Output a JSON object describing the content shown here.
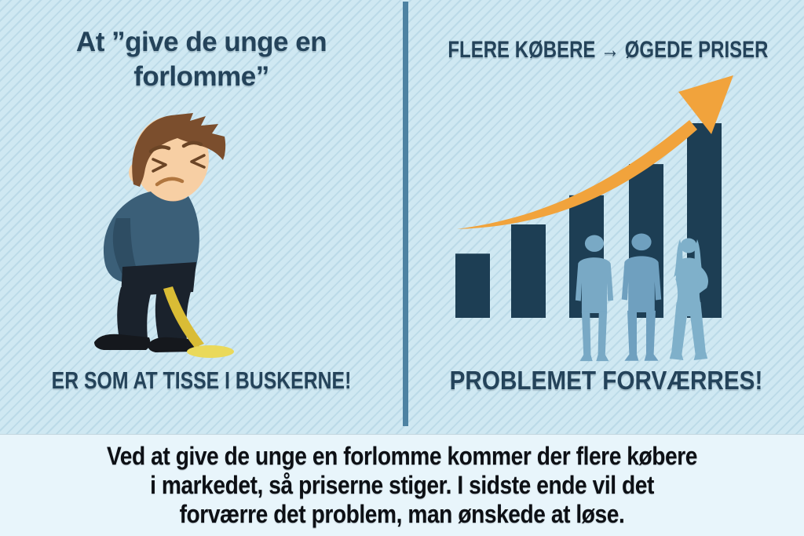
{
  "colors": {
    "background": "#cfe8f2",
    "stripe": "#aecfdf",
    "heading_text": "#24435a",
    "divider": "#4d82a2",
    "footer_background": "#e8f5fb",
    "footer_text": "#0d1015",
    "arrow_orange": "#f1a33c",
    "bar_navy": "#1d3e54",
    "silhouette_blue": "#74a7c4",
    "skin": "#f7cfa4",
    "hair_brown": "#7b4e2d",
    "sweater_blue": "#3b5f78",
    "pants_dark": "#1a222c",
    "pee_yellow": "#d9bc35",
    "puddle_yellow": "#ead95a"
  },
  "left_panel": {
    "title": "At ”give de unge en forlomme”",
    "caption": "ER SOM AT TISSE I BUSKERNE!",
    "illustration": "peeing-man-cartoon"
  },
  "right_panel": {
    "title": "FLERE KØBERE → ØGEDE PRISER",
    "caption": "PROBLEMET FORVÆRRES!",
    "chart_data": {
      "type": "bar",
      "categories": [
        "1",
        "2",
        "3",
        "4",
        "5"
      ],
      "values_relative": [
        33,
        48,
        63,
        79,
        100
      ],
      "title": "",
      "xlabel": "",
      "ylabel": "",
      "grid": false,
      "axes_labeled": false,
      "annotations": [
        "upward-trend-arrow",
        "three-buyer-silhouettes"
      ]
    }
  },
  "footer": {
    "lines": [
      "Ved at give de unge en forlomme kommer der flere købere",
      "i markedet, så priserne stiger. I sidste ende vil det",
      "forværre det problem, man ønskede at løse."
    ]
  }
}
